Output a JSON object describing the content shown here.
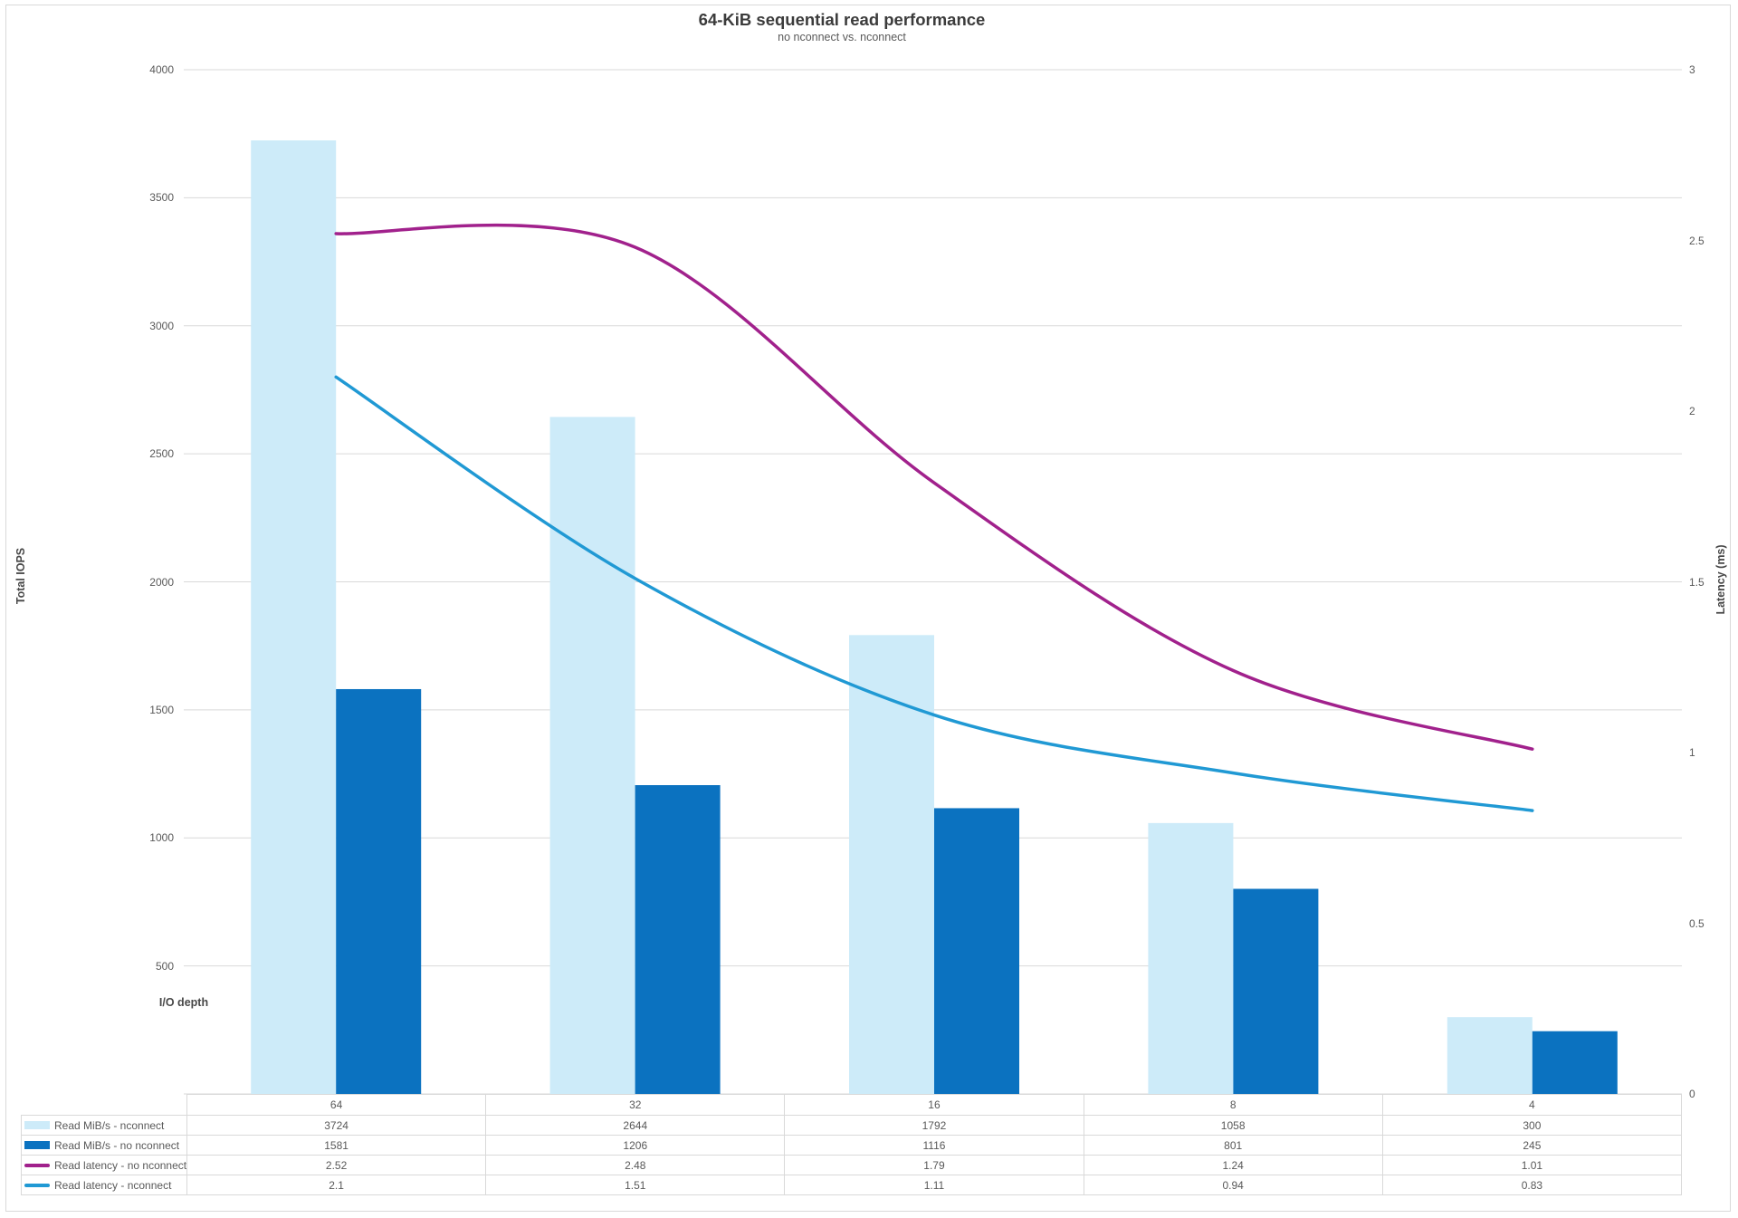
{
  "title": "64-KiB sequential read performance",
  "subtitle": "no nconnect vs. nconnect",
  "chart_data": {
    "type": "combo-bar-line",
    "categories": [
      "64",
      "32",
      "16",
      "8",
      "4"
    ],
    "x_axis": {
      "title": "I/O depth"
    },
    "left_axis": {
      "title": "Total IOPS",
      "range": [
        0,
        4000
      ],
      "ticks": [
        4000,
        3500,
        3000,
        2500,
        2000,
        1500,
        1000,
        500
      ]
    },
    "right_axis": {
      "title": "Latency (ms)",
      "range": [
        0,
        3
      ],
      "ticks": [
        3,
        2.5,
        2,
        1.5,
        1,
        0.5,
        0
      ]
    },
    "grid": true,
    "legend_position": "table-left-column",
    "series": [
      {
        "name": "Read MiB/s - nconnect",
        "type": "bar",
        "axis": "left",
        "color": "#CDEBF9",
        "values": [
          3724,
          2644,
          1792,
          1058,
          300
        ]
      },
      {
        "name": "Read MiB/s - no nconnect",
        "type": "bar",
        "axis": "left",
        "color": "#0B72C0",
        "values": [
          1581,
          1206,
          1116,
          801,
          245
        ]
      },
      {
        "name": "Read latency - no nconnect",
        "type": "line",
        "axis": "right",
        "color": "#A1218C",
        "values": [
          2.52,
          2.48,
          1.79,
          1.24,
          1.01
        ]
      },
      {
        "name": "Read latency - nconnect",
        "type": "line",
        "axis": "right",
        "color": "#2099D4",
        "values": [
          2.1,
          1.51,
          1.11,
          0.94,
          0.83
        ]
      }
    ]
  },
  "colors": {
    "gridline": "#D9D9D9",
    "table_border": "#D9D9D9",
    "axis_text": "#595959",
    "title_text": "#3B3B3B"
  }
}
